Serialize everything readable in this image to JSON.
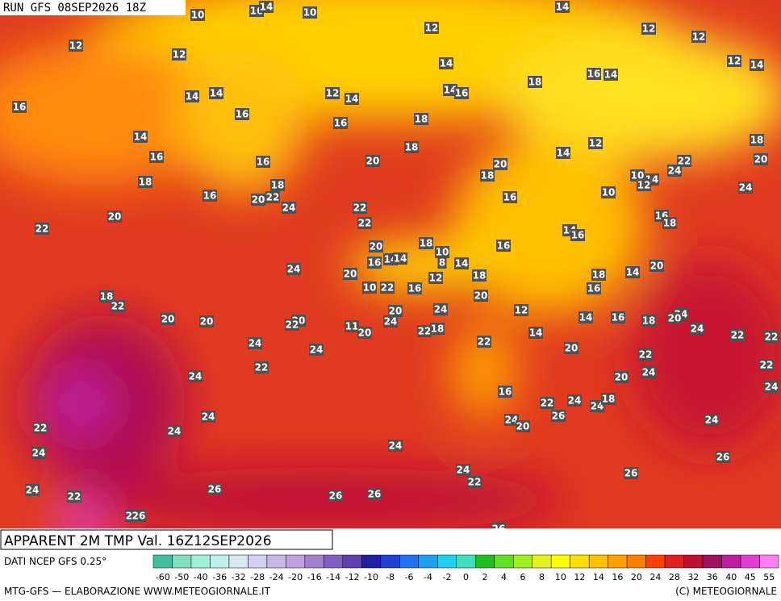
{
  "header": {
    "run": "RUN GFS 08SEP2026 18Z"
  },
  "title": "APPARENT 2M TMP Val. 16Z12SEP2026",
  "source": "DATI NCEP GFS 0.25°",
  "credit": "MTG-GFS — ELABORAZIONE WWW.METEOGIORNALE.IT",
  "copyright": "(C) METEOGIORNALE",
  "legend": {
    "ticks": [
      -60,
      -50,
      -40,
      -36,
      -32,
      -28,
      -24,
      -20,
      -16,
      -14,
      -12,
      -10,
      -8,
      -6,
      -4,
      -2,
      0,
      2,
      4,
      6,
      8,
      10,
      12,
      14,
      16,
      20,
      24,
      28,
      32,
      36,
      40,
      45,
      55
    ],
    "colors": [
      "#40c0a0",
      "#80e0c0",
      "#a0f0d8",
      "#c0f0e8",
      "#d8e8f0",
      "#d0d0f0",
      "#c8b8e8",
      "#c0a0e0",
      "#a080d0",
      "#8060c0",
      "#6040b0",
      "#2020a0",
      "#2040d0",
      "#2070f0",
      "#20a0f0",
      "#20d0f0",
      "#40e0c0",
      "#20c020",
      "#60e020",
      "#a0f020",
      "#e0f020",
      "#ffff00",
      "#ffe000",
      "#ffc000",
      "#ffa000",
      "#ff8000",
      "#ff4000",
      "#e02020",
      "#c01030",
      "#a01060",
      "#c020a0",
      "#e040d0",
      "#ff80f0"
    ]
  },
  "map_labels": [
    10,
    16,
    14,
    10,
    14,
    12,
    12,
    12,
    12,
    12,
    12,
    14,
    14,
    18,
    16,
    14,
    14,
    14,
    12,
    14,
    14,
    16,
    16,
    16,
    18,
    14,
    16,
    18,
    14,
    12,
    18,
    20,
    16,
    16,
    20,
    20,
    18,
    22,
    24,
    18,
    18,
    10,
    14,
    12,
    24,
    16,
    20,
    22,
    16,
    10,
    24,
    22,
    20,
    22,
    16,
    18,
    22,
    14,
    16,
    16,
    20,
    18,
    10,
    24,
    16,
    14,
    14,
    8,
    14,
    18,
    14,
    20,
    20,
    12,
    18,
    10,
    22,
    16,
    16,
    18,
    22,
    20,
    24,
    20,
    12,
    14,
    16,
    18,
    24,
    20,
    20,
    20,
    20,
    22,
    11,
    20,
    24,
    22,
    18,
    14,
    24,
    22,
    22,
    24,
    24,
    22,
    20,
    22,
    22,
    24,
    20,
    24,
    22,
    24,
    16,
    22,
    24,
    24,
    18,
    24,
    26,
    24,
    20,
    24,
    24,
    22,
    24,
    24,
    26,
    26,
    24,
    22,
    24,
    26,
    22,
    26,
    26,
    22,
    26,
    26
  ]
}
